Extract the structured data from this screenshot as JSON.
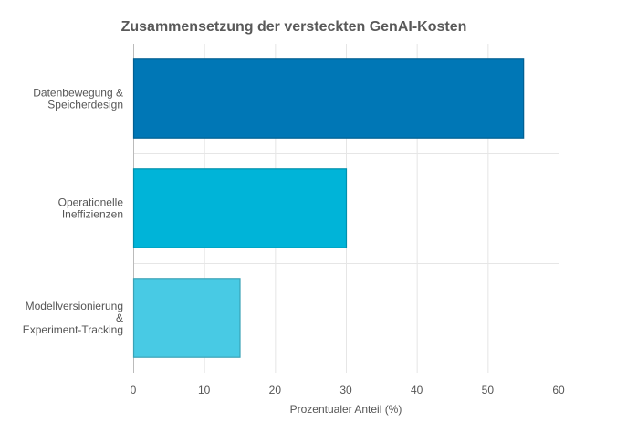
{
  "chart_data": {
    "type": "bar",
    "orientation": "horizontal",
    "title": "Zusammensetzung der versteckten GenAI-Kosten",
    "xlabel": "Prozentualer Anteil (%)",
    "ylabel": "",
    "categories": [
      [
        "Datenbewegung &",
        "Speicherdesign"
      ],
      [
        "Operationelle",
        "Ineffizienzen"
      ],
      [
        "Modellversionierung",
        "&",
        "Experiment-Tracking"
      ]
    ],
    "values": [
      55,
      30,
      15
    ],
    "colors": [
      "#0077b6",
      "#00b4d8",
      "#48cae4"
    ],
    "border_colors": [
      "#005f92",
      "#0090ad",
      "#39a2b6"
    ],
    "xlim": [
      0,
      60
    ],
    "xticks": [
      0,
      10,
      20,
      30,
      40,
      50,
      60
    ],
    "grid": true,
    "legend": "none"
  }
}
